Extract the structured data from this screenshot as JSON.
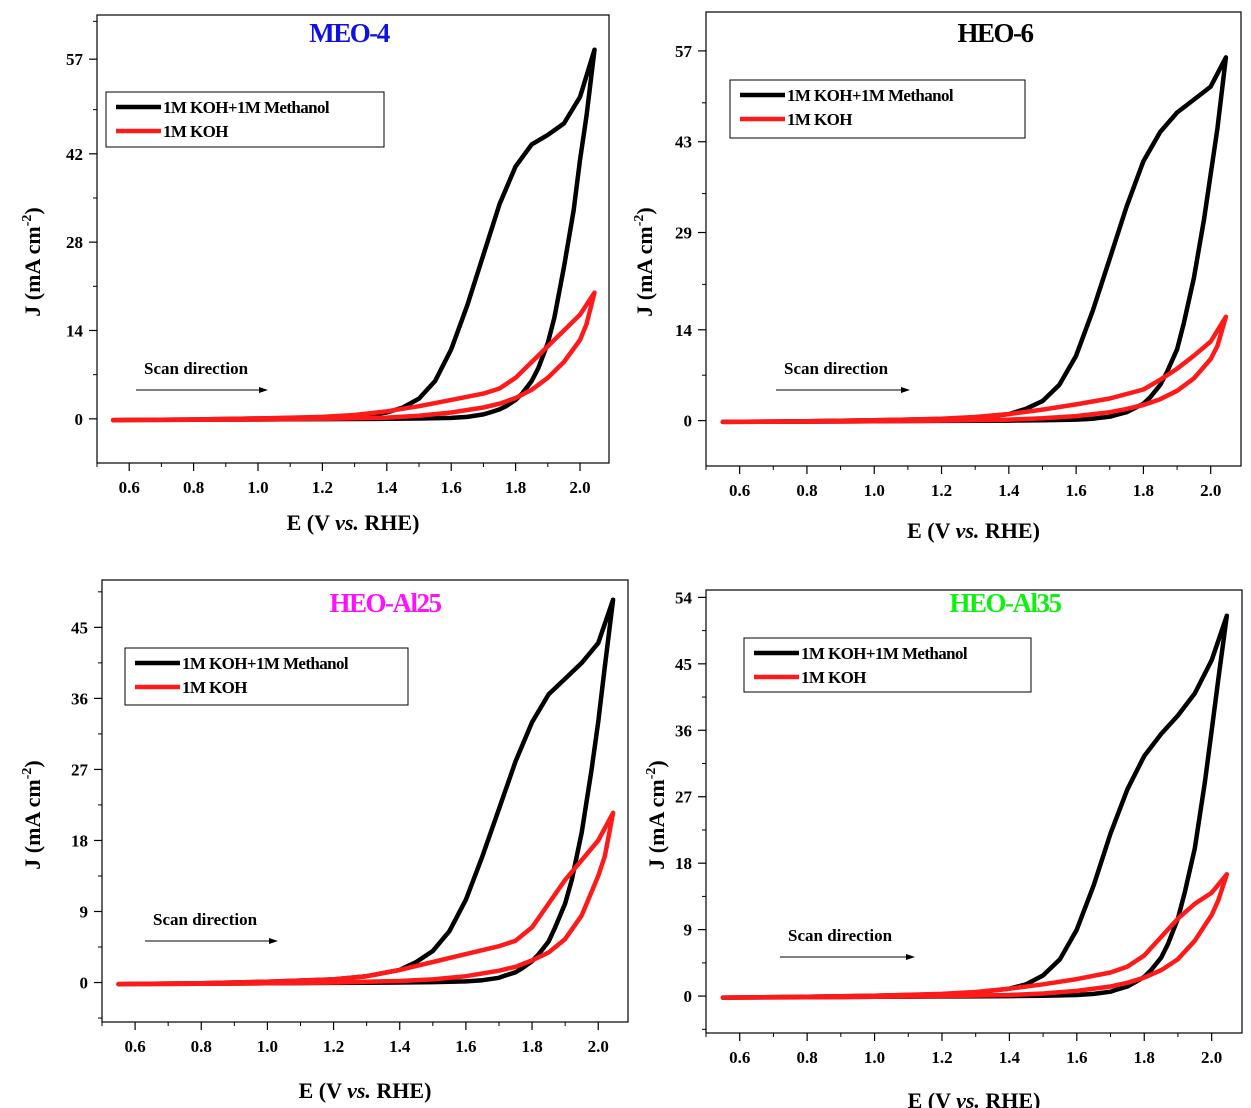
{
  "chart_data": [
    {
      "type": "line",
      "title": "MEO-4",
      "title_color": "#1010e0",
      "xlabel": {
        "prefix": "E (V ",
        "italic": "vs.",
        "suffix": " RHE)"
      },
      "ylabel": {
        "text": "J (mA cm",
        "sup": "-2",
        "close": ")"
      },
      "xlim": [
        0.5,
        2.09
      ],
      "ylim": [
        -7,
        64
      ],
      "xticks": [
        0.6,
        0.8,
        1.0,
        1.2,
        1.4,
        1.6,
        1.8,
        2.0
      ],
      "xtick_labels": [
        "0.6",
        "0.8",
        "1.0",
        "1.2",
        "1.4",
        "1.6",
        "1.8",
        "2.0"
      ],
      "yticks": [
        0,
        14,
        28,
        42,
        57
      ],
      "ytick_labels": [
        "0",
        "14",
        "28",
        "42",
        "57"
      ],
      "legend": [
        {
          "label": "1M KOH+1M Methanol",
          "color": "#000000"
        },
        {
          "label": "1M KOH",
          "color": "#ff1a1a"
        }
      ],
      "annotation": {
        "text": "Scan direction"
      },
      "series": [
        {
          "name": "1M KOH+1M Methanol",
          "color": "#000000",
          "x": [
            0.55,
            0.8,
            1.0,
            1.2,
            1.3,
            1.4,
            1.45,
            1.5,
            1.55,
            1.6,
            1.65,
            1.7,
            1.75,
            1.8,
            1.85,
            1.9,
            1.95,
            2.0,
            2.045,
            2.02,
            2.0,
            1.98,
            1.95,
            1.92,
            1.9,
            1.87,
            1.85,
            1.82,
            1.8,
            1.77,
            1.75,
            1.72,
            1.7,
            1.65,
            1.6,
            1.5,
            1.4,
            1.2,
            1.0,
            0.8,
            0.55
          ],
          "y": [
            -0.2,
            -0.1,
            0.05,
            0.2,
            0.4,
            1.0,
            1.8,
            3.2,
            6.0,
            11.0,
            18.0,
            26.0,
            34.0,
            40.0,
            43.5,
            45.0,
            46.8,
            51.0,
            58.5,
            48.0,
            41.0,
            33.0,
            24.0,
            16.0,
            12.0,
            8.0,
            6.0,
            4.0,
            3.0,
            2.0,
            1.5,
            1.0,
            0.7,
            0.3,
            0.15,
            0.05,
            0.0,
            -0.05,
            -0.1,
            -0.15,
            -0.2
          ]
        },
        {
          "name": "1M KOH",
          "color": "#ff1a1a",
          "x": [
            0.55,
            0.8,
            1.0,
            1.2,
            1.3,
            1.4,
            1.5,
            1.6,
            1.7,
            1.75,
            1.8,
            1.85,
            1.9,
            1.95,
            2.0,
            2.045,
            2.02,
            2.0,
            1.95,
            1.9,
            1.85,
            1.8,
            1.75,
            1.7,
            1.6,
            1.5,
            1.4,
            1.2,
            1.0,
            0.8,
            0.55
          ],
          "y": [
            -0.2,
            -0.1,
            0.05,
            0.3,
            0.6,
            1.2,
            2.0,
            3.0,
            4.0,
            4.8,
            6.5,
            9.0,
            11.5,
            14.0,
            16.5,
            20.0,
            15.0,
            12.5,
            9.0,
            6.5,
            4.6,
            3.3,
            2.4,
            1.8,
            1.0,
            0.5,
            0.2,
            0.0,
            -0.1,
            -0.15,
            -0.2
          ]
        }
      ]
    },
    {
      "type": "line",
      "title": "HEO-6",
      "title_color": "#000000",
      "xlabel": {
        "prefix": "E (V ",
        "italic": "vs.",
        "suffix": " RHE)"
      },
      "ylabel": {
        "text": "J (mA cm",
        "sup": "-2",
        "close": ")"
      },
      "xlim": [
        0.5,
        2.09
      ],
      "ylim": [
        -7,
        63
      ],
      "xticks": [
        0.6,
        0.8,
        1.0,
        1.2,
        1.4,
        1.6,
        1.8,
        2.0
      ],
      "xtick_labels": [
        "0.6",
        "0.8",
        "1.0",
        "1.2",
        "1.4",
        "1.6",
        "1.8",
        "2.0"
      ],
      "yticks": [
        0,
        14,
        29,
        43,
        57
      ],
      "ytick_labels": [
        "0",
        "14",
        "29",
        "43",
        "57"
      ],
      "legend": [
        {
          "label": "1M KOH+1M Methanol",
          "color": "#000000"
        },
        {
          "label": "1M KOH",
          "color": "#ff1a1a"
        }
      ],
      "annotation": {
        "text": "Scan direction"
      },
      "series": [
        {
          "name": "1M KOH+1M Methanol",
          "color": "#000000",
          "x": [
            0.55,
            0.8,
            1.0,
            1.2,
            1.3,
            1.4,
            1.45,
            1.5,
            1.55,
            1.6,
            1.65,
            1.7,
            1.75,
            1.8,
            1.85,
            1.9,
            1.95,
            2.0,
            2.045,
            2.02,
            2.0,
            1.98,
            1.95,
            1.92,
            1.9,
            1.87,
            1.85,
            1.82,
            1.8,
            1.77,
            1.75,
            1.72,
            1.7,
            1.65,
            1.6,
            1.5,
            1.4,
            1.2,
            1.0,
            0.8,
            0.55
          ],
          "y": [
            -0.2,
            -0.1,
            0.05,
            0.25,
            0.5,
            1.0,
            1.8,
            3.0,
            5.5,
            10.0,
            17.0,
            25.0,
            33.0,
            40.0,
            44.5,
            47.5,
            49.5,
            51.5,
            56.0,
            45.0,
            38.0,
            31.0,
            22.0,
            15.0,
            11.0,
            7.5,
            5.5,
            3.6,
            2.6,
            1.8,
            1.3,
            0.9,
            0.6,
            0.3,
            0.15,
            0.05,
            0.0,
            -0.05,
            -0.1,
            -0.15,
            -0.2
          ]
        },
        {
          "name": "1M KOH",
          "color": "#ff1a1a",
          "x": [
            0.55,
            0.8,
            1.0,
            1.2,
            1.3,
            1.4,
            1.5,
            1.6,
            1.7,
            1.8,
            1.85,
            1.9,
            1.95,
            2.0,
            2.045,
            2.02,
            2.0,
            1.95,
            1.9,
            1.85,
            1.8,
            1.75,
            1.7,
            1.6,
            1.5,
            1.4,
            1.2,
            1.0,
            0.8,
            0.55
          ],
          "y": [
            -0.2,
            -0.1,
            0.05,
            0.3,
            0.55,
            1.0,
            1.7,
            2.5,
            3.4,
            4.8,
            6.3,
            8.0,
            10.0,
            12.2,
            16.0,
            11.5,
            9.5,
            6.5,
            4.6,
            3.3,
            2.4,
            1.8,
            1.3,
            0.7,
            0.35,
            0.15,
            0.0,
            -0.1,
            -0.15,
            -0.2
          ]
        }
      ]
    },
    {
      "type": "line",
      "title": "HEO-Al25",
      "title_color": "#ff10ff",
      "xlabel": {
        "prefix": "E (V ",
        "italic": "vs.",
        "suffix": " RHE)"
      },
      "ylabel": {
        "text": "J (mA cm",
        "sup": "-2",
        "close": ")"
      },
      "xlim": [
        0.5,
        2.09
      ],
      "ylim": [
        -5,
        51
      ],
      "xticks": [
        0.6,
        0.8,
        1.0,
        1.2,
        1.4,
        1.6,
        1.8,
        2.0
      ],
      "xtick_labels": [
        "0.6",
        "0.8",
        "1.0",
        "1.2",
        "1.4",
        "1.6",
        "1.8",
        "2.0"
      ],
      "yticks": [
        0,
        9,
        18,
        27,
        36,
        45
      ],
      "ytick_labels": [
        "0",
        "9",
        "18",
        "27",
        "36",
        "45"
      ],
      "legend": [
        {
          "label": "1M KOH+1M Methanol",
          "color": "#000000"
        },
        {
          "label": "1M KOH",
          "color": "#ff1a1a"
        }
      ],
      "annotation": {
        "text": "Scan direction"
      },
      "series": [
        {
          "name": "1M KOH+1M Methanol",
          "color": "#000000",
          "x": [
            0.55,
            0.8,
            1.0,
            1.2,
            1.3,
            1.4,
            1.45,
            1.5,
            1.55,
            1.6,
            1.65,
            1.7,
            1.75,
            1.8,
            1.85,
            1.9,
            1.95,
            2.0,
            2.045,
            2.02,
            2.0,
            1.98,
            1.95,
            1.92,
            1.9,
            1.87,
            1.85,
            1.82,
            1.8,
            1.77,
            1.75,
            1.72,
            1.7,
            1.65,
            1.6,
            1.5,
            1.4,
            1.2,
            1.0,
            0.8,
            0.55
          ],
          "y": [
            -0.2,
            -0.1,
            0.1,
            0.4,
            0.8,
            1.6,
            2.6,
            4.0,
            6.5,
            10.5,
            16.0,
            22.0,
            28.0,
            33.0,
            36.5,
            38.5,
            40.5,
            43.0,
            48.5,
            40.0,
            33.0,
            27.0,
            19.0,
            13.0,
            10.0,
            7.0,
            5.2,
            3.6,
            2.7,
            1.8,
            1.3,
            0.9,
            0.6,
            0.3,
            0.15,
            0.05,
            0.0,
            -0.05,
            -0.1,
            -0.15,
            -0.2
          ]
        },
        {
          "name": "1M KOH",
          "color": "#ff1a1a",
          "x": [
            0.55,
            0.8,
            1.0,
            1.2,
            1.3,
            1.4,
            1.5,
            1.6,
            1.7,
            1.75,
            1.8,
            1.85,
            1.9,
            1.95,
            2.0,
            2.045,
            2.02,
            2.0,
            1.95,
            1.9,
            1.85,
            1.8,
            1.75,
            1.7,
            1.6,
            1.5,
            1.4,
            1.2,
            1.0,
            0.8,
            0.55
          ],
          "y": [
            -0.2,
            -0.1,
            0.1,
            0.4,
            0.8,
            1.6,
            2.6,
            3.6,
            4.6,
            5.3,
            7.0,
            10.0,
            13.0,
            15.5,
            18.0,
            21.5,
            16.0,
            13.5,
            8.5,
            5.5,
            3.8,
            2.8,
            2.0,
            1.5,
            0.8,
            0.4,
            0.2,
            0.0,
            -0.1,
            -0.15,
            -0.2
          ]
        }
      ]
    },
    {
      "type": "line",
      "title": "HEO-Al35",
      "title_color": "#10f010",
      "xlabel": {
        "prefix": "E (V ",
        "italic": "vs.",
        "suffix": " RHE)"
      },
      "ylabel": {
        "text": "J (mA cm",
        "sup": "-2",
        "close": ")"
      },
      "xlim": [
        0.5,
        2.09
      ],
      "ylim": [
        -5,
        55
      ],
      "xticks": [
        0.6,
        0.8,
        1.0,
        1.2,
        1.4,
        1.6,
        1.8,
        2.0
      ],
      "xtick_labels": [
        "0.6",
        "0.8",
        "1.0",
        "1.2",
        "1.4",
        "1.6",
        "1.8",
        "2.0"
      ],
      "yticks": [
        0,
        9,
        18,
        27,
        36,
        45,
        54
      ],
      "ytick_labels": [
        "0",
        "9",
        "18",
        "27",
        "36",
        "45",
        "54"
      ],
      "legend": [
        {
          "label": "1M KOH+1M Methanol",
          "color": "#000000"
        },
        {
          "label": "1M KOH",
          "color": "#ff1a1a"
        }
      ],
      "annotation": {
        "text": "Scan direction"
      },
      "series": [
        {
          "name": "1M KOH+1M Methanol",
          "color": "#000000",
          "x": [
            0.55,
            0.8,
            1.0,
            1.2,
            1.3,
            1.4,
            1.45,
            1.5,
            1.55,
            1.6,
            1.65,
            1.7,
            1.75,
            1.8,
            1.85,
            1.9,
            1.95,
            2.0,
            2.045,
            2.02,
            2.0,
            1.98,
            1.95,
            1.92,
            1.9,
            1.87,
            1.85,
            1.82,
            1.8,
            1.77,
            1.75,
            1.72,
            1.7,
            1.65,
            1.6,
            1.5,
            1.4,
            1.2,
            1.0,
            0.8,
            0.55
          ],
          "y": [
            -0.2,
            -0.1,
            0.05,
            0.25,
            0.5,
            1.0,
            1.6,
            2.8,
            5.0,
            9.0,
            15.0,
            22.0,
            28.0,
            32.5,
            35.5,
            38.0,
            41.0,
            45.5,
            51.5,
            43.0,
            36.0,
            29.0,
            20.0,
            14.0,
            10.5,
            7.0,
            5.2,
            3.5,
            2.6,
            1.8,
            1.3,
            0.9,
            0.6,
            0.3,
            0.15,
            0.05,
            0.0,
            -0.05,
            -0.1,
            -0.15,
            -0.2
          ]
        },
        {
          "name": "1M KOH",
          "color": "#ff1a1a",
          "x": [
            0.55,
            0.8,
            1.0,
            1.2,
            1.3,
            1.4,
            1.5,
            1.6,
            1.7,
            1.75,
            1.8,
            1.85,
            1.9,
            1.95,
            2.0,
            2.045,
            2.02,
            2.0,
            1.95,
            1.9,
            1.85,
            1.8,
            1.75,
            1.7,
            1.6,
            1.5,
            1.4,
            1.2,
            1.0,
            0.8,
            0.55
          ],
          "y": [
            -0.2,
            -0.1,
            0.05,
            0.3,
            0.55,
            1.0,
            1.6,
            2.3,
            3.2,
            4.0,
            5.5,
            8.0,
            10.5,
            12.5,
            14.0,
            16.5,
            13.0,
            11.0,
            7.5,
            5.0,
            3.5,
            2.5,
            1.8,
            1.3,
            0.7,
            0.35,
            0.15,
            0.0,
            -0.1,
            -0.15,
            -0.2
          ]
        }
      ]
    }
  ]
}
